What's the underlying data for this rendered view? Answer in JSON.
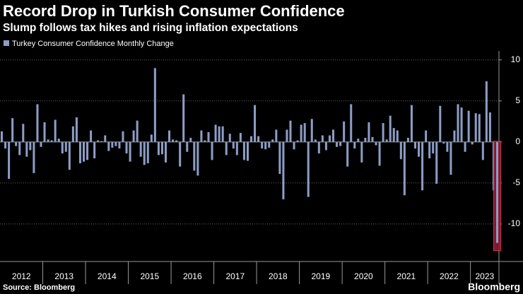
{
  "chart_data": {
    "type": "bar",
    "title": "Record Drop in Turkish Consumer Confidence",
    "subtitle": "Slump follows tax hikes and rising inflation expectations",
    "source": "Source: Bloomberg",
    "brand": "Bloomberg",
    "categories": [
      "2012",
      null,
      null,
      null,
      null,
      null,
      null,
      null,
      null,
      null,
      null,
      null,
      "2013",
      null,
      null,
      null,
      null,
      null,
      null,
      null,
      null,
      null,
      null,
      null,
      "2014",
      null,
      null,
      null,
      null,
      null,
      null,
      null,
      null,
      null,
      null,
      null,
      "2015",
      null,
      null,
      null,
      null,
      null,
      null,
      null,
      null,
      null,
      null,
      null,
      "2016",
      null,
      null,
      null,
      null,
      null,
      null,
      null,
      null,
      null,
      null,
      null,
      "2017",
      null,
      null,
      null,
      null,
      null,
      null,
      null,
      null,
      null,
      null,
      null,
      "2018",
      null,
      null,
      null,
      null,
      null,
      null,
      null,
      null,
      null,
      null,
      null,
      "2019",
      null,
      null,
      null,
      null,
      null,
      null,
      null,
      null,
      null,
      null,
      null,
      "2020",
      null,
      null,
      null,
      null,
      null,
      null,
      null,
      null,
      null,
      null,
      null,
      "2021",
      null,
      null,
      null,
      null,
      null,
      null,
      null,
      null,
      null,
      null,
      null,
      "2022",
      null,
      null,
      null,
      null,
      null,
      null,
      null,
      null,
      null,
      null,
      null,
      "2023",
      null,
      null,
      null,
      null,
      null,
      null,
      null
    ],
    "series": [
      {
        "name": "Turkey Consumer Confidence Monthly Change",
        "color": "#8c9dc6",
        "values": [
          1.3,
          -0.8,
          -4.5,
          2.9,
          -0.5,
          -1.6,
          2.2,
          -1.8,
          -1.0,
          -3.8,
          4.6,
          -0.6,
          2.4,
          0.3,
          0.2,
          2.7,
          0.4,
          -1.4,
          -1.2,
          -3.4,
          1.9,
          3.0,
          -2.6,
          -2.4,
          -2.2,
          1.4,
          -2.0,
          0.2,
          0.1,
          0.8,
          -1.1,
          -0.7,
          -0.5,
          -0.8,
          1.3,
          -1.4,
          -2.4,
          1.4,
          2.6,
          -1.8,
          -2.8,
          -2.6,
          0.9,
          9.0,
          -1.6,
          -1.5,
          -2.5,
          1.4,
          0.3,
          0.2,
          -3.0,
          5.8,
          -1.2,
          0.5,
          -3.5,
          -4.1,
          1.4,
          0.2,
          1.2,
          -2.2,
          2.1,
          1.9,
          1.9,
          -1.6,
          1.0,
          -0.8,
          -1.6,
          1.1,
          -2.2,
          -2.3,
          0.7,
          4.5,
          0.7,
          -0.8,
          -0.9,
          -0.7,
          0.3,
          1.5,
          -3.9,
          -7.0,
          1.5,
          2.6,
          -0.9,
          0.2,
          2.1,
          2.3,
          -6.7,
          2.8,
          0.3,
          -1.4,
          0.8,
          -1.0,
          0.8,
          1.5,
          -0.6,
          -0.5,
          2.5,
          -3.0,
          4.6,
          -0.8,
          0.4,
          -2.5,
          0.5,
          2.4,
          0.6,
          -0.4,
          -2.9,
          2.3,
          0.3,
          3.2,
          1.7,
          1.4,
          -2.1,
          -6.5,
          0.5,
          4.5,
          -0.8,
          -1.8,
          -5.9,
          1.4,
          -2.0,
          -1.4,
          -5.1,
          4.4,
          -0.2,
          -1.2,
          -4.0,
          1.4,
          4.6,
          4.2,
          -1.2,
          3.8,
          -0.3,
          3.5,
          3.4,
          -2.2,
          7.4,
          3.6,
          -5.9,
          -12.3
        ]
      }
    ],
    "ylim": [
      -14.4,
      11.1
    ],
    "yticks": [
      10,
      5,
      0,
      -5,
      -10
    ],
    "grid": true
  }
}
